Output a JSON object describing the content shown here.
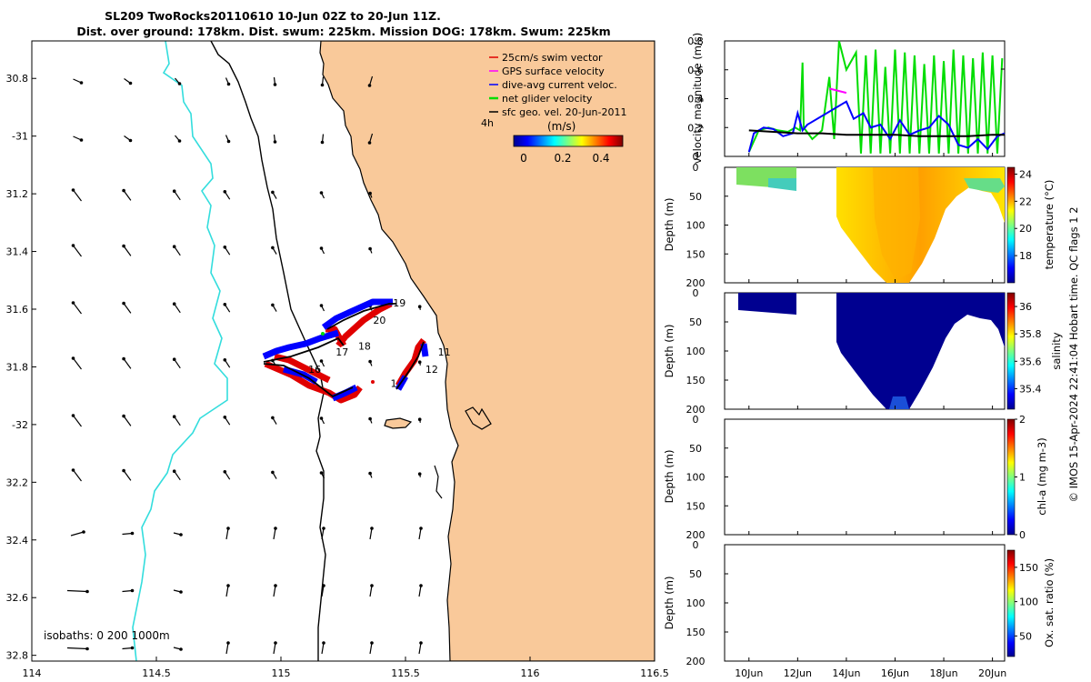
{
  "title": {
    "line1": "SL209 TwoRocks20110610 10-Jun 02Z to 20-Jun 11Z.",
    "line2": "Dist. over ground: 178km. Dist. swum: 225km. Mission DOG: 178km. Swum: 225km"
  },
  "map": {
    "legend": [
      {
        "label": "25cm/s swim vector",
        "color": "#e00000"
      },
      {
        "label": "GPS surface velocity",
        "color": "#ff00ff"
      },
      {
        "label": "dive-avg current veloc.",
        "color": "#0000ff"
      },
      {
        "label": "net glider velocity",
        "color": "#00dd00"
      },
      {
        "label": "sfc geo. vel. 20-Jun-2011",
        "color": "#000000"
      }
    ],
    "timestep_label": "4h",
    "colorbar": {
      "units": "(m/s)",
      "ticks": [
        "0",
        "0.2",
        "0.4"
      ]
    },
    "isobaths_label": "isobaths: 0   200  1000m",
    "xlim": [
      114,
      116.5
    ],
    "ylim": [
      32.82,
      30.67
    ],
    "lon_ticks": [
      "114",
      "114.5",
      "115",
      "115.5",
      "116",
      "116.5"
    ],
    "lat_ticks": [
      "30.8",
      "-31",
      "31.2",
      "31.4",
      "31.6",
      "31.8",
      "-32",
      "32.2",
      "32.4",
      "32.6",
      "32.8"
    ],
    "track_labels": [
      {
        "text": "19",
        "lon": 115.45,
        "lat": 31.59
      },
      {
        "text": "20",
        "lon": 115.37,
        "lat": 31.65
      },
      {
        "text": "18",
        "lon": 115.31,
        "lat": 31.74
      },
      {
        "text": "17",
        "lon": 115.22,
        "lat": 31.76
      },
      {
        "text": "16",
        "lon": 115.11,
        "lat": 31.82
      },
      {
        "text": "11",
        "lon": 115.63,
        "lat": 31.76
      },
      {
        "text": "12",
        "lon": 115.58,
        "lat": 31.82
      },
      {
        "text": "1",
        "lon": 115.44,
        "lat": 31.87
      }
    ]
  },
  "chart_data": [
    {
      "type": "line",
      "name": "velocity-magnitude",
      "ylabel": "velocity magnitude (m/s)",
      "ylim": [
        0,
        0.8
      ],
      "yticks": [
        "0",
        "0.2",
        "0.4",
        "0.6",
        "0.8"
      ],
      "xlim": [
        9,
        20.5
      ],
      "series": [
        {
          "name": "net glider velocity",
          "color": "#00dd00",
          "x": [
            10.0,
            10.4,
            10.8,
            11.2,
            11.6,
            11.9,
            12.1,
            12.2,
            12.25,
            12.6,
            13.0,
            13.3,
            13.5,
            13.7,
            14.0,
            14.4,
            14.8,
            15.2,
            15.6,
            16.0,
            16.4,
            16.8,
            17.2,
            17.6,
            18.0,
            18.4,
            18.8,
            19.2,
            19.6,
            20.0,
            20.4
          ],
          "y": [
            0.03,
            0.18,
            0.2,
            0.18,
            0.17,
            0.2,
            0.18,
            0.65,
            0.2,
            0.12,
            0.18,
            0.55,
            0.12,
            0.8,
            0.6,
            0.72,
            0.7,
            0.74,
            0.62,
            0.74,
            0.72,
            0.7,
            0.64,
            0.7,
            0.66,
            0.74,
            0.7,
            0.68,
            0.72,
            0.7,
            0.68
          ]
        },
        {
          "name": "dive-avg current veloc.",
          "color": "#0000ff",
          "x": [
            10.0,
            10.2,
            10.6,
            11.0,
            11.4,
            11.8,
            12.0,
            12.2,
            12.4,
            14.0,
            14.3,
            14.7,
            15.0,
            15.4,
            15.8,
            16.2,
            16.6,
            17.0,
            17.4,
            17.8,
            18.2,
            18.6,
            19.0,
            19.4,
            19.8,
            20.2,
            20.5
          ],
          "y": [
            0.03,
            0.16,
            0.2,
            0.19,
            0.14,
            0.16,
            0.3,
            0.18,
            0.22,
            0.38,
            0.26,
            0.3,
            0.2,
            0.22,
            0.12,
            0.25,
            0.15,
            0.18,
            0.2,
            0.28,
            0.22,
            0.08,
            0.06,
            0.12,
            0.05,
            0.14,
            0.16
          ]
        },
        {
          "name": "GPS surface velocity",
          "color": "#ff00ff",
          "x": [
            13.3,
            14.0
          ],
          "y": [
            0.47,
            0.44
          ]
        },
        {
          "name": "sfc geo. vel.",
          "color": "#000000",
          "x": [
            10.0,
            11.0,
            12.0,
            13.0,
            14.0,
            15.0,
            16.0,
            17.0,
            18.0,
            19.0,
            20.0,
            20.5
          ],
          "y": [
            0.18,
            0.17,
            0.16,
            0.16,
            0.15,
            0.15,
            0.15,
            0.14,
            0.14,
            0.14,
            0.15,
            0.15
          ]
        }
      ]
    },
    {
      "type": "heatmap",
      "name": "temperature-section",
      "ylabel": "Depth (m)",
      "ylim": [
        0,
        200
      ],
      "yticks": [
        "0",
        "50",
        "100",
        "150",
        "200"
      ],
      "colorbar_label": "temperature (°C)",
      "cticks": [
        "24",
        "22",
        "20",
        "18"
      ],
      "crange": [
        16,
        24.5
      ]
    },
    {
      "type": "heatmap",
      "name": "salinity-section",
      "ylabel": "Depth (m)",
      "ylim": [
        0,
        200
      ],
      "yticks": [
        "0",
        "50",
        "100",
        "150",
        "200"
      ],
      "colorbar_label": "salinity",
      "cticks": [
        "36",
        "35.8",
        "35.6",
        "35.4"
      ],
      "crange": [
        35.25,
        36.1
      ]
    },
    {
      "type": "heatmap",
      "name": "chla-section",
      "ylabel": "Depth (m)",
      "ylim": [
        0,
        200
      ],
      "yticks": [
        "0",
        "50",
        "100",
        "150",
        "200"
      ],
      "colorbar_label": "chl-a (mg m-3)",
      "cticks": [
        "2",
        "1",
        "0"
      ],
      "crange": [
        0,
        2
      ]
    },
    {
      "type": "heatmap",
      "name": "oxygen-section",
      "ylabel": "Depth (m)",
      "ylim": [
        0,
        200
      ],
      "yticks": [
        "0",
        "50",
        "100",
        "150",
        "200"
      ],
      "colorbar_label": "Ox. sat. ratio (%)",
      "cticks": [
        "150",
        "100",
        "50"
      ],
      "crange": [
        20,
        175
      ]
    }
  ],
  "date_ticks": [
    "10Jun",
    "12Jun",
    "14Jun",
    "16Jun",
    "18Jun",
    "20Jun"
  ],
  "footer_note": "© IMOS 15-Apr-2024 22:41:04 Hobart time. QC flags 1  2",
  "colors": {
    "land": "#f9c99a",
    "isobath200": "#33dddd"
  }
}
